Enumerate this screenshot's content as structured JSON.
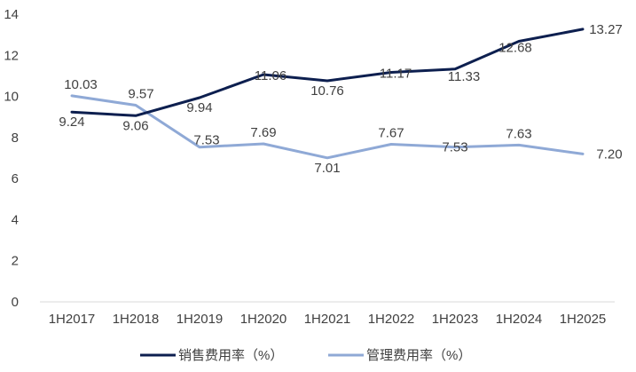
{
  "chart_data": {
    "type": "line",
    "categories": [
      "1H2017",
      "1H2018",
      "1H2019",
      "1H2020",
      "1H2021",
      "1H2022",
      "1H2023",
      "1H2024",
      "1H2025"
    ],
    "series": [
      {
        "name": "销售费用率（%）",
        "color": "#0d1f4f",
        "values": [
          9.24,
          9.06,
          9.94,
          11.06,
          10.76,
          11.17,
          11.33,
          12.68,
          13.27
        ],
        "labels": [
          "9.24",
          "9.06",
          "9.94",
          "11.06",
          "10.76",
          "11.17",
          "11.33",
          "12.68",
          "13.27"
        ]
      },
      {
        "name": "管理费用率（%）",
        "color": "#8fa9d6",
        "values": [
          10.03,
          9.57,
          7.53,
          7.69,
          7.01,
          7.67,
          7.53,
          7.63,
          7.2
        ],
        "labels": [
          "10.03",
          "9.57",
          "7.53",
          "7.69",
          "7.01",
          "7.67",
          "7.53",
          "7.63",
          "7.20"
        ]
      }
    ],
    "y_ticks": [
      "0",
      "2",
      "4",
      "6",
      "8",
      "10",
      "12",
      "14"
    ],
    "ylim": [
      0,
      14
    ],
    "grid": false,
    "legend_position": "bottom"
  }
}
